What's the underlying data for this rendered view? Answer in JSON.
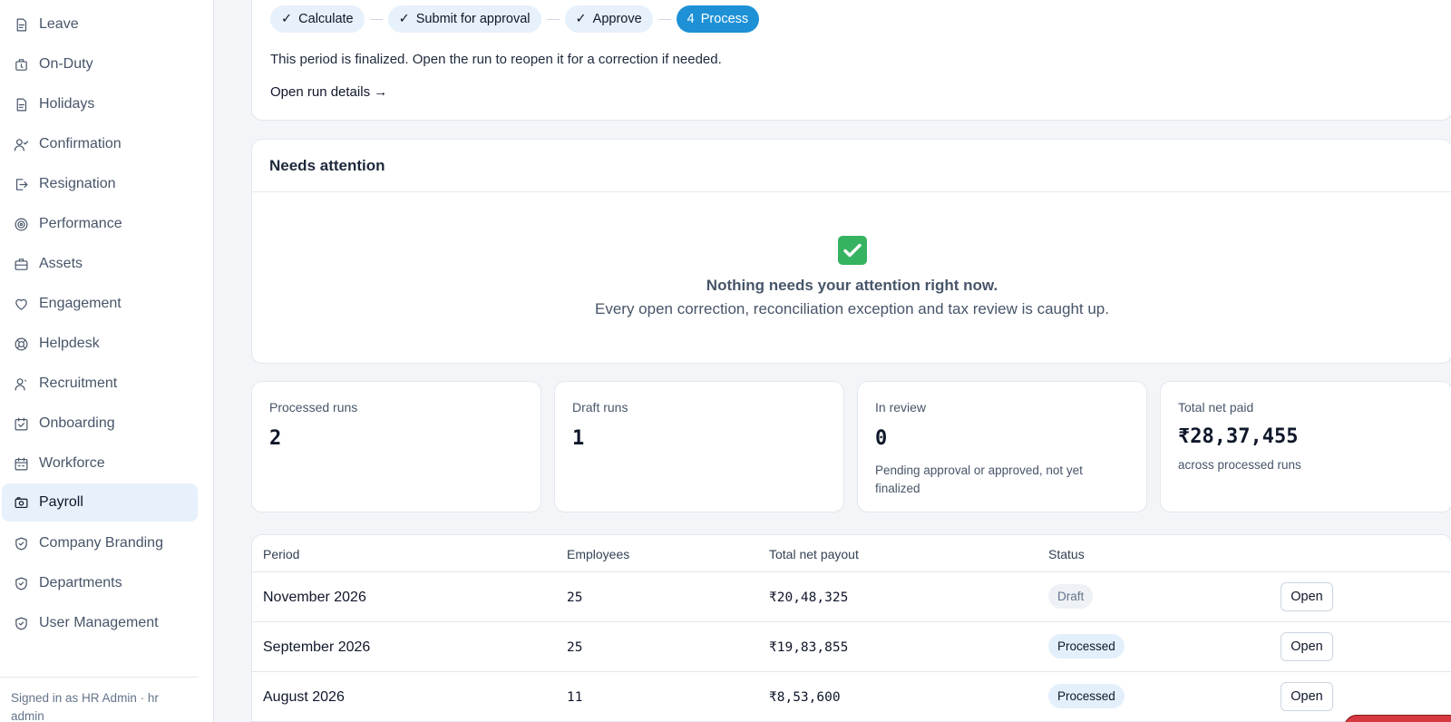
{
  "sidebar": {
    "items": [
      {
        "label": "Leave",
        "icon": "leave-icon"
      },
      {
        "label": "On-Duty",
        "icon": "on-duty-icon"
      },
      {
        "label": "Holidays",
        "icon": "holidays-icon"
      },
      {
        "label": "Confirmation",
        "icon": "confirmation-icon"
      },
      {
        "label": "Resignation",
        "icon": "resignation-icon"
      },
      {
        "label": "Performance",
        "icon": "performance-icon"
      },
      {
        "label": "Assets",
        "icon": "assets-icon"
      },
      {
        "label": "Engagement",
        "icon": "engagement-icon"
      },
      {
        "label": "Helpdesk",
        "icon": "helpdesk-icon"
      },
      {
        "label": "Recruitment",
        "icon": "recruitment-icon"
      },
      {
        "label": "Onboarding",
        "icon": "onboarding-icon"
      },
      {
        "label": "Workforce",
        "icon": "workforce-icon"
      },
      {
        "label": "Payroll",
        "icon": "payroll-icon",
        "active": true
      },
      {
        "label": "Company Branding",
        "icon": "shield-icon"
      },
      {
        "label": "Departments",
        "icon": "shield-icon"
      },
      {
        "label": "User Management",
        "icon": "shield-icon"
      }
    ],
    "signed_in": "Signed in as HR Admin · hr admin"
  },
  "stepper": {
    "steps": [
      {
        "prefix": "✓",
        "label": "Calculate"
      },
      {
        "prefix": "✓",
        "label": "Submit for approval"
      },
      {
        "prefix": "✓",
        "label": "Approve"
      },
      {
        "prefix": "4",
        "label": "Process",
        "current": true
      }
    ],
    "message": "This period is finalized. Open the run to reopen it for a correction if needed.",
    "link": "Open run details →"
  },
  "attention": {
    "title": "Needs attention",
    "empty_title": "Nothing needs your attention right now.",
    "empty_sub": "Every open correction, reconciliation exception and tax review is caught up."
  },
  "stats": [
    {
      "label": "Processed runs",
      "value": "2",
      "note": ""
    },
    {
      "label": "Draft runs",
      "value": "1",
      "note": ""
    },
    {
      "label": "In review",
      "value": "0",
      "note": "Pending approval or approved, not yet finalized"
    },
    {
      "label": "Total net paid",
      "value": "₹28,37,455",
      "note": "across processed runs"
    }
  ],
  "table": {
    "headers": {
      "period": "Period",
      "employees": "Employees",
      "total": "Total net payout",
      "status": "Status"
    },
    "rows": [
      {
        "period": "November 2026",
        "employees": "25",
        "total": "₹20,48,325",
        "status": "Draft",
        "action": "Open"
      },
      {
        "period": "September 2026",
        "employees": "25",
        "total": "₹19,83,855",
        "status": "Processed",
        "action": "Open"
      },
      {
        "period": "August 2026",
        "employees": "11",
        "total": "₹8,53,600",
        "status": "Processed",
        "action": "Open"
      }
    ]
  },
  "colors": {
    "accent": "#1e91d6",
    "success": "#36b360",
    "active_bg": "#e6f1fb"
  }
}
